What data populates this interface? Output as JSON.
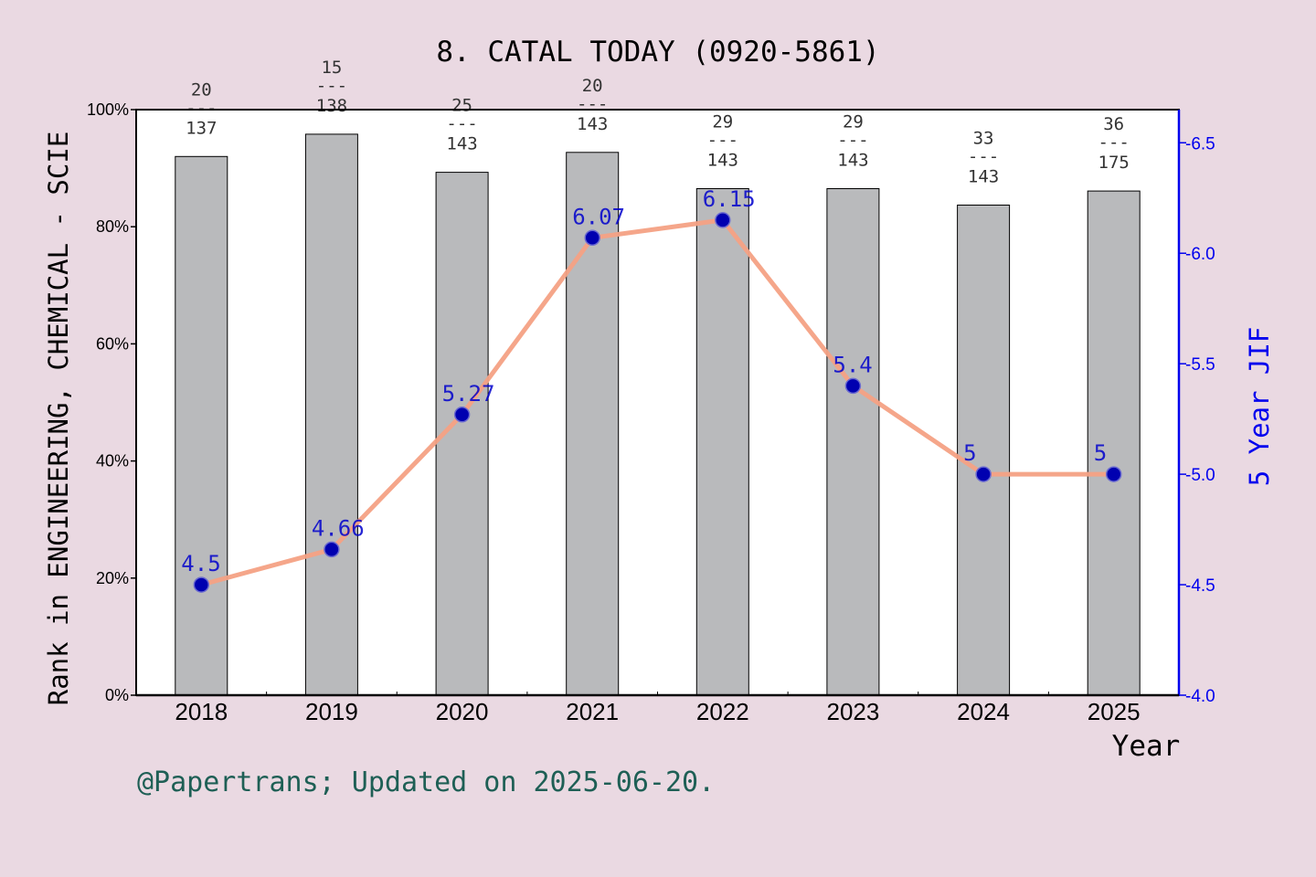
{
  "chart_data": {
    "type": "bar+line",
    "title": "8. CATAL TODAY (0920-5861)",
    "xlabel": "Year",
    "ylabel_left": "Rank in ENGINEERING, CHEMICAL - SCIE",
    "ylabel_right": "5 Year JIF",
    "footer": "@Papertrans; Updated on 2025-06-20.",
    "categories": [
      "2018",
      "2019",
      "2020",
      "2021",
      "2022",
      "2023",
      "2024",
      "2025"
    ],
    "bar_percent": [
      92.0,
      95.8,
      89.3,
      92.7,
      86.5,
      86.5,
      83.7,
      86.1
    ],
    "rank_labels": [
      {
        "rank": "20",
        "sep": "---",
        "total": "137"
      },
      {
        "rank": "15",
        "sep": "---",
        "total": "138"
      },
      {
        "rank": "25",
        "sep": "---",
        "total": "143"
      },
      {
        "rank": "20",
        "sep": "---",
        "total": "143"
      },
      {
        "rank": "29",
        "sep": "---",
        "total": "143"
      },
      {
        "rank": "29",
        "sep": "---",
        "total": "143"
      },
      {
        "rank": "33",
        "sep": "---",
        "total": "143"
      },
      {
        "rank": "36",
        "sep": "---",
        "total": "175"
      }
    ],
    "jif_values": [
      4.5,
      4.66,
      5.27,
      6.07,
      6.15,
      5.4,
      5.0,
      5.0
    ],
    "jif_labels": [
      "4.5",
      "4.66",
      "5.27",
      "6.07",
      "6.15",
      "5.4",
      "5",
      "5"
    ],
    "ylim_left": [
      0,
      100
    ],
    "ylim_right": [
      4.0,
      6.65
    ],
    "left_ticks": [
      {
        "value": 0,
        "label": "0%"
      },
      {
        "value": 20,
        "label": "20%"
      },
      {
        "value": 40,
        "label": "40%"
      },
      {
        "value": 60,
        "label": "60%"
      },
      {
        "value": 80,
        "label": "80%"
      },
      {
        "value": 100,
        "label": "100%"
      }
    ],
    "right_ticks": [
      {
        "value": 4.0,
        "label": "4.0"
      },
      {
        "value": 4.5,
        "label": "4.5"
      },
      {
        "value": 5.0,
        "label": "5.0"
      },
      {
        "value": 5.5,
        "label": "5.5"
      },
      {
        "value": 6.0,
        "label": "6.0"
      },
      {
        "value": 6.5,
        "label": "6.5"
      }
    ],
    "colors": {
      "background": "#ead9e2",
      "plot_background": "#ffffff",
      "bar_fill": "#b9babc",
      "line": "#f4a184",
      "marker": "#0000b0",
      "right_axis": "#0000ee",
      "jif_label": "#0000cc",
      "footer": "#1e5f55",
      "rank_label": "#333333"
    },
    "grid": false
  }
}
